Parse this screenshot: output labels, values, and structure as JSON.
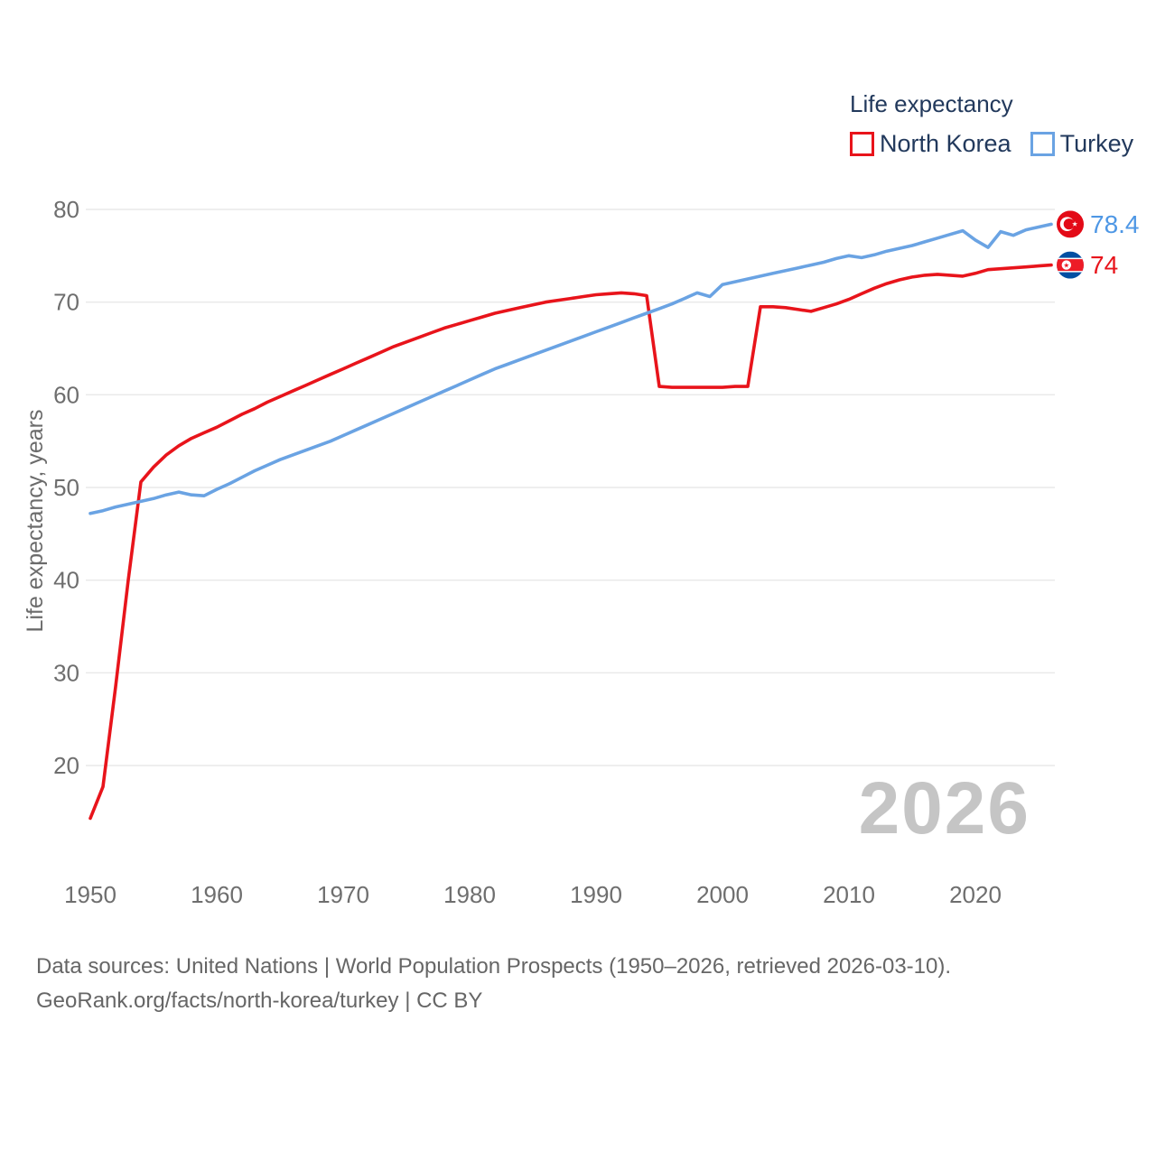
{
  "legend": {
    "title": "Life expectancy",
    "items": [
      {
        "label": "North Korea",
        "color": "#e8141b"
      },
      {
        "label": "Turkey",
        "color": "#6aa3e3"
      }
    ]
  },
  "watermark": "2026",
  "footer": {
    "line1": "Data sources: United Nations | World Population Prospects (1950–2026, retrieved 2026-03-10).",
    "line2": "GeoRank.org/facts/north-korea/turkey | CC BY"
  },
  "end_labels": [
    {
      "series": "Turkey",
      "value": "78.4",
      "color": "#4e97e5",
      "flag": "turkey-flag-icon"
    },
    {
      "series": "North Korea",
      "value": "74",
      "color": "#e8141b",
      "flag": "north-korea-flag-icon"
    }
  ],
  "chart_data": {
    "type": "line",
    "title": "Life expectancy",
    "xlabel": "",
    "ylabel": "Life expectancy, years",
    "xlim": [
      1950,
      2026
    ],
    "ylim": [
      13,
      80
    ],
    "x_ticks": [
      1950,
      1960,
      1970,
      1980,
      1990,
      2000,
      2010,
      2020
    ],
    "y_ticks": [
      20,
      30,
      40,
      50,
      60,
      70,
      80
    ],
    "grid": "horizontal",
    "legend_position": "top-right",
    "x": [
      1950,
      1951,
      1952,
      1953,
      1954,
      1955,
      1956,
      1957,
      1958,
      1959,
      1960,
      1961,
      1962,
      1963,
      1964,
      1965,
      1966,
      1967,
      1968,
      1969,
      1970,
      1971,
      1972,
      1973,
      1974,
      1975,
      1976,
      1977,
      1978,
      1979,
      1980,
      1981,
      1982,
      1983,
      1984,
      1985,
      1986,
      1987,
      1988,
      1989,
      1990,
      1991,
      1992,
      1993,
      1994,
      1995,
      1996,
      1997,
      1998,
      1999,
      2000,
      2001,
      2002,
      2003,
      2004,
      2005,
      2006,
      2007,
      2008,
      2009,
      2010,
      2011,
      2012,
      2013,
      2014,
      2015,
      2016,
      2017,
      2018,
      2019,
      2020,
      2021,
      2022,
      2023,
      2024,
      2025,
      2026
    ],
    "series": [
      {
        "name": "North Korea",
        "color": "#e8141b",
        "values": [
          14.3,
          17.7,
          28.5,
          40.0,
          50.6,
          52.2,
          53.5,
          54.5,
          55.3,
          55.9,
          56.5,
          57.2,
          57.9,
          58.5,
          59.2,
          59.8,
          60.4,
          61.0,
          61.6,
          62.2,
          62.8,
          63.4,
          64.0,
          64.6,
          65.2,
          65.7,
          66.2,
          66.7,
          67.2,
          67.6,
          68.0,
          68.4,
          68.8,
          69.1,
          69.4,
          69.7,
          70.0,
          70.2,
          70.4,
          70.6,
          70.8,
          70.9,
          71.0,
          70.9,
          70.7,
          60.9,
          60.8,
          60.8,
          60.8,
          60.8,
          60.8,
          60.9,
          60.9,
          69.5,
          69.5,
          69.4,
          69.2,
          69.0,
          69.4,
          69.8,
          70.3,
          70.9,
          71.5,
          72.0,
          72.4,
          72.7,
          72.9,
          73.0,
          72.9,
          72.8,
          73.1,
          73.5,
          73.6,
          73.7,
          73.8,
          73.9,
          74.0
        ]
      },
      {
        "name": "Turkey",
        "color": "#6aa3e3",
        "values": [
          47.2,
          47.5,
          47.9,
          48.2,
          48.5,
          48.8,
          49.2,
          49.5,
          49.2,
          49.1,
          49.8,
          50.4,
          51.1,
          51.8,
          52.4,
          53.0,
          53.5,
          54.0,
          54.5,
          55.0,
          55.6,
          56.2,
          56.8,
          57.4,
          58.0,
          58.6,
          59.2,
          59.8,
          60.4,
          61.0,
          61.6,
          62.2,
          62.8,
          63.3,
          63.8,
          64.3,
          64.8,
          65.3,
          65.8,
          66.3,
          66.8,
          67.3,
          67.8,
          68.3,
          68.8,
          69.3,
          69.8,
          70.4,
          71.0,
          70.6,
          71.9,
          72.2,
          72.5,
          72.8,
          73.1,
          73.4,
          73.7,
          74.0,
          74.3,
          74.7,
          75.0,
          74.8,
          75.1,
          75.5,
          75.8,
          76.1,
          76.5,
          76.9,
          77.3,
          77.7,
          76.7,
          75.9,
          77.6,
          77.2,
          77.8,
          78.1,
          78.4
        ]
      }
    ]
  }
}
